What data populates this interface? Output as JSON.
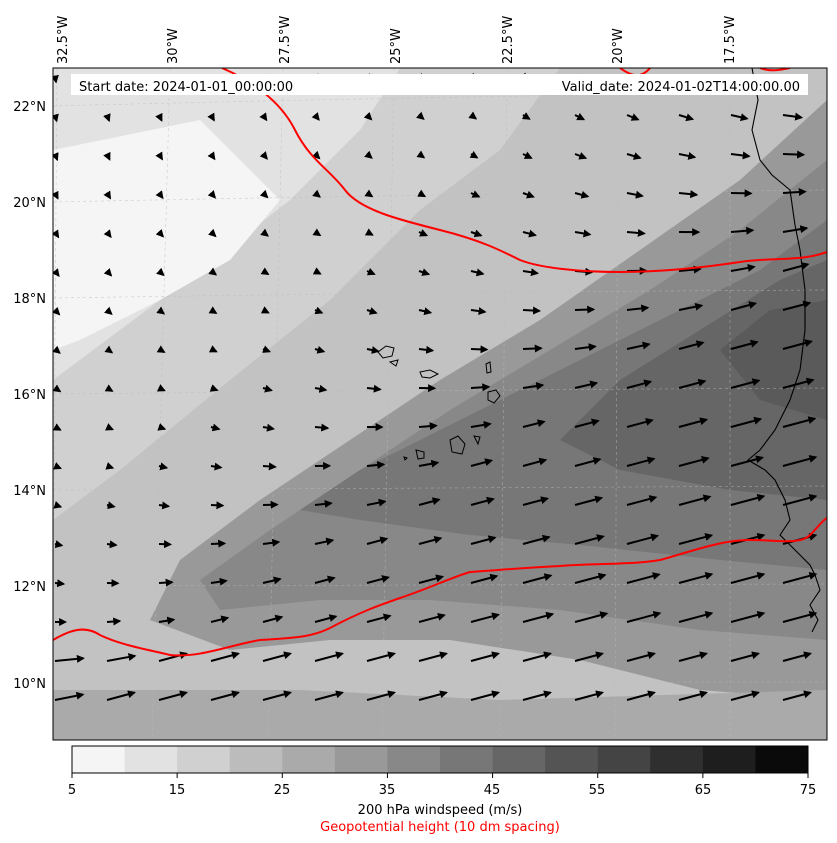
{
  "header": {
    "start_date": "Start date: 2024-01-01_00:00:00",
    "valid_date": "Valid_date: 2024-01-02T14:00:00.00"
  },
  "map": {
    "lon_labels": [
      "32.5°W",
      "30°W",
      "27.5°W",
      "25°W",
      "22.5°W",
      "20°W",
      "17.5°W"
    ],
    "lat_labels": [
      "22°N",
      "20°N",
      "18°N",
      "16°N",
      "14°N",
      "12°N",
      "10°N"
    ],
    "contour_color": "#ff0000",
    "coastline_color": "#000000"
  },
  "colorbar": {
    "ticks": [
      "5",
      "15",
      "25",
      "35",
      "45",
      "55",
      "65",
      "75"
    ],
    "label": "200 hPa windspeed (m/s)",
    "secondary_label": "Geopotential height (10 dm spacing)",
    "secondary_label_color": "#ff0000",
    "levels": [
      5,
      10,
      15,
      20,
      25,
      30,
      35,
      40,
      45,
      50,
      55,
      60,
      65,
      70,
      75
    ],
    "colors": [
      "#f5f5f5",
      "#e2e2e2",
      "#d0d0d0",
      "#bcbcbc",
      "#aaaaaa",
      "#999999",
      "#888888",
      "#777777",
      "#666666",
      "#545454",
      "#444444",
      "#2f2f2f",
      "#1e1e1e",
      "#0a0a0a"
    ]
  }
}
